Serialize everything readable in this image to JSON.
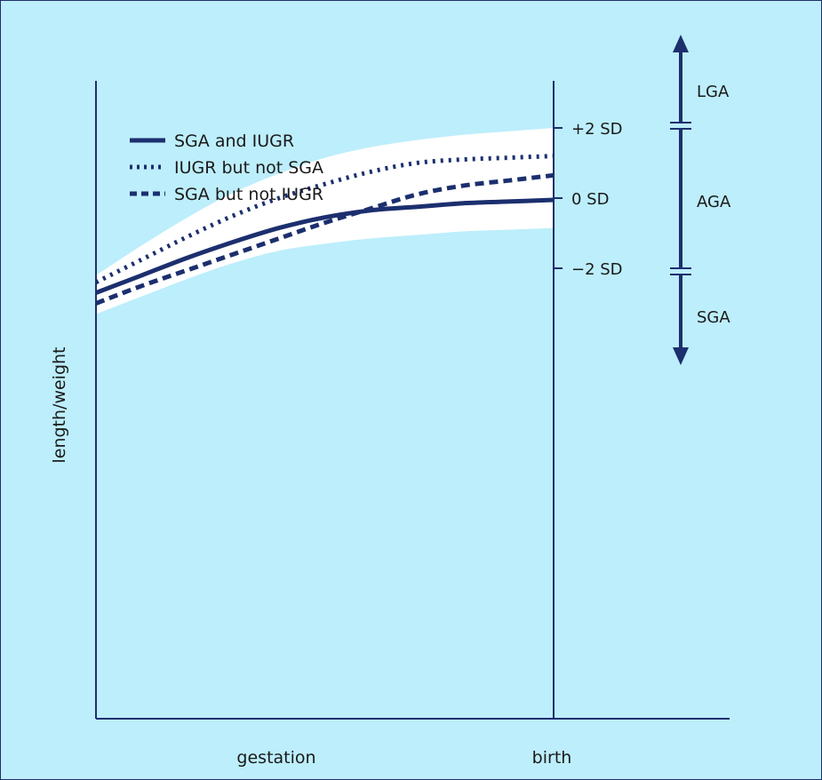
{
  "colors": {
    "background": "#bdeefb",
    "band": "#ffffff",
    "ink": "#1c2f6e",
    "text": "#1a1a1a"
  },
  "chart_data": {
    "type": "line",
    "xlabel": "gestation",
    "ylabel": "length/weight",
    "x_end_label": "birth",
    "xlim": [
      0,
      1
    ],
    "ylim": [
      -3.5,
      3.5
    ],
    "sd_ticks": [
      {
        "label": "+2 SD",
        "value": 2
      },
      {
        "label": "0 SD",
        "value": 0
      },
      {
        "label": "−2 SD",
        "value": -2
      }
    ],
    "normal_band": {
      "x": [
        0,
        0.1,
        0.2,
        0.3,
        0.4,
        0.5,
        0.6,
        0.7,
        0.8,
        0.9,
        1.0
      ],
      "upper": [
        -2.2,
        -1.35,
        -0.55,
        0.15,
        0.7,
        1.15,
        1.45,
        1.65,
        1.8,
        1.9,
        2.0
      ],
      "lower": [
        -3.3,
        -2.8,
        -2.3,
        -1.85,
        -1.5,
        -1.3,
        -1.15,
        -1.05,
        -0.95,
        -0.9,
        -0.85
      ]
    },
    "series": [
      {
        "name": "SGA and IUGR",
        "style": "solid",
        "x": [
          0,
          0.1,
          0.2,
          0.3,
          0.4,
          0.5,
          0.6,
          0.7,
          0.8,
          0.9,
          1.0
        ],
        "values": [
          -2.7,
          -2.2,
          -1.7,
          -1.25,
          -0.85,
          -0.55,
          -0.35,
          -0.25,
          -0.15,
          -0.1,
          -0.05
        ]
      },
      {
        "name": "IUGR but not SGA",
        "style": "dotted",
        "x": [
          0,
          0.1,
          0.2,
          0.3,
          0.4,
          0.5,
          0.6,
          0.7,
          0.8,
          0.9,
          1.0
        ],
        "values": [
          -2.4,
          -1.75,
          -1.1,
          -0.5,
          0.0,
          0.4,
          0.75,
          1.0,
          1.1,
          1.15,
          1.2
        ]
      },
      {
        "name": "SGA but not IUGR",
        "style": "dashed",
        "x": [
          0,
          0.1,
          0.2,
          0.3,
          0.4,
          0.5,
          0.6,
          0.7,
          0.8,
          0.9,
          1.0
        ],
        "values": [
          -3.0,
          -2.5,
          -2.05,
          -1.6,
          -1.15,
          -0.7,
          -0.3,
          0.1,
          0.35,
          0.5,
          0.65
        ]
      }
    ],
    "size_categories": [
      {
        "label": "LGA",
        "range": [
          2,
          3.5
        ]
      },
      {
        "label": "AGA",
        "range": [
          -2,
          2
        ]
      },
      {
        "label": "SGA",
        "range": [
          -3.5,
          -2
        ]
      }
    ],
    "legend": "top-left",
    "grid": false
  }
}
